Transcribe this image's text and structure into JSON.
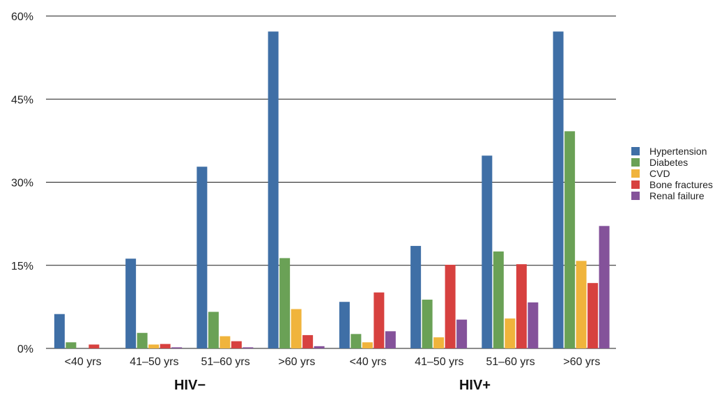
{
  "chart_data": {
    "type": "bar",
    "y_tick_labels": [
      "0%",
      "15%",
      "30%",
      "45%",
      "60%"
    ],
    "y_ticks": [
      0,
      15,
      30,
      45,
      60
    ],
    "ylim": [
      0,
      60
    ],
    "grid": true,
    "legend_position": "right",
    "categories": [
      "<40 yrs",
      "41–50 yrs",
      "51–60 yrs",
      ">60 yrs",
      "<40 yrs",
      "41–50 yrs",
      "51–60 yrs",
      ">60 yrs"
    ],
    "groups": [
      {
        "label": "HIV−",
        "category_indices": [
          0,
          1,
          2,
          3
        ]
      },
      {
        "label": "HIV+",
        "category_indices": [
          4,
          5,
          6,
          7
        ]
      }
    ],
    "series": [
      {
        "name": "Hypertension",
        "color": "#3f6fa6",
        "values": [
          6.2,
          16.2,
          32.8,
          57.2,
          8.4,
          18.5,
          34.8,
          57.2
        ]
      },
      {
        "name": "Diabetes",
        "color": "#6aa156",
        "values": [
          1.1,
          2.8,
          6.6,
          16.3,
          2.6,
          8.8,
          17.5,
          39.2
        ]
      },
      {
        "name": "CVD",
        "color": "#f0b43c",
        "values": [
          0,
          0.7,
          2.2,
          7.1,
          1.1,
          2.0,
          5.4,
          15.8
        ]
      },
      {
        "name": "Bone fractures",
        "color": "#d7413f",
        "values": [
          0.7,
          0.8,
          1.3,
          2.4,
          10.1,
          15.1,
          15.2,
          11.8
        ]
      },
      {
        "name": "Renal failure",
        "color": "#84529a",
        "values": [
          0,
          0.2,
          0.2,
          0.4,
          3.1,
          5.2,
          8.3,
          22.1
        ]
      }
    ]
  }
}
